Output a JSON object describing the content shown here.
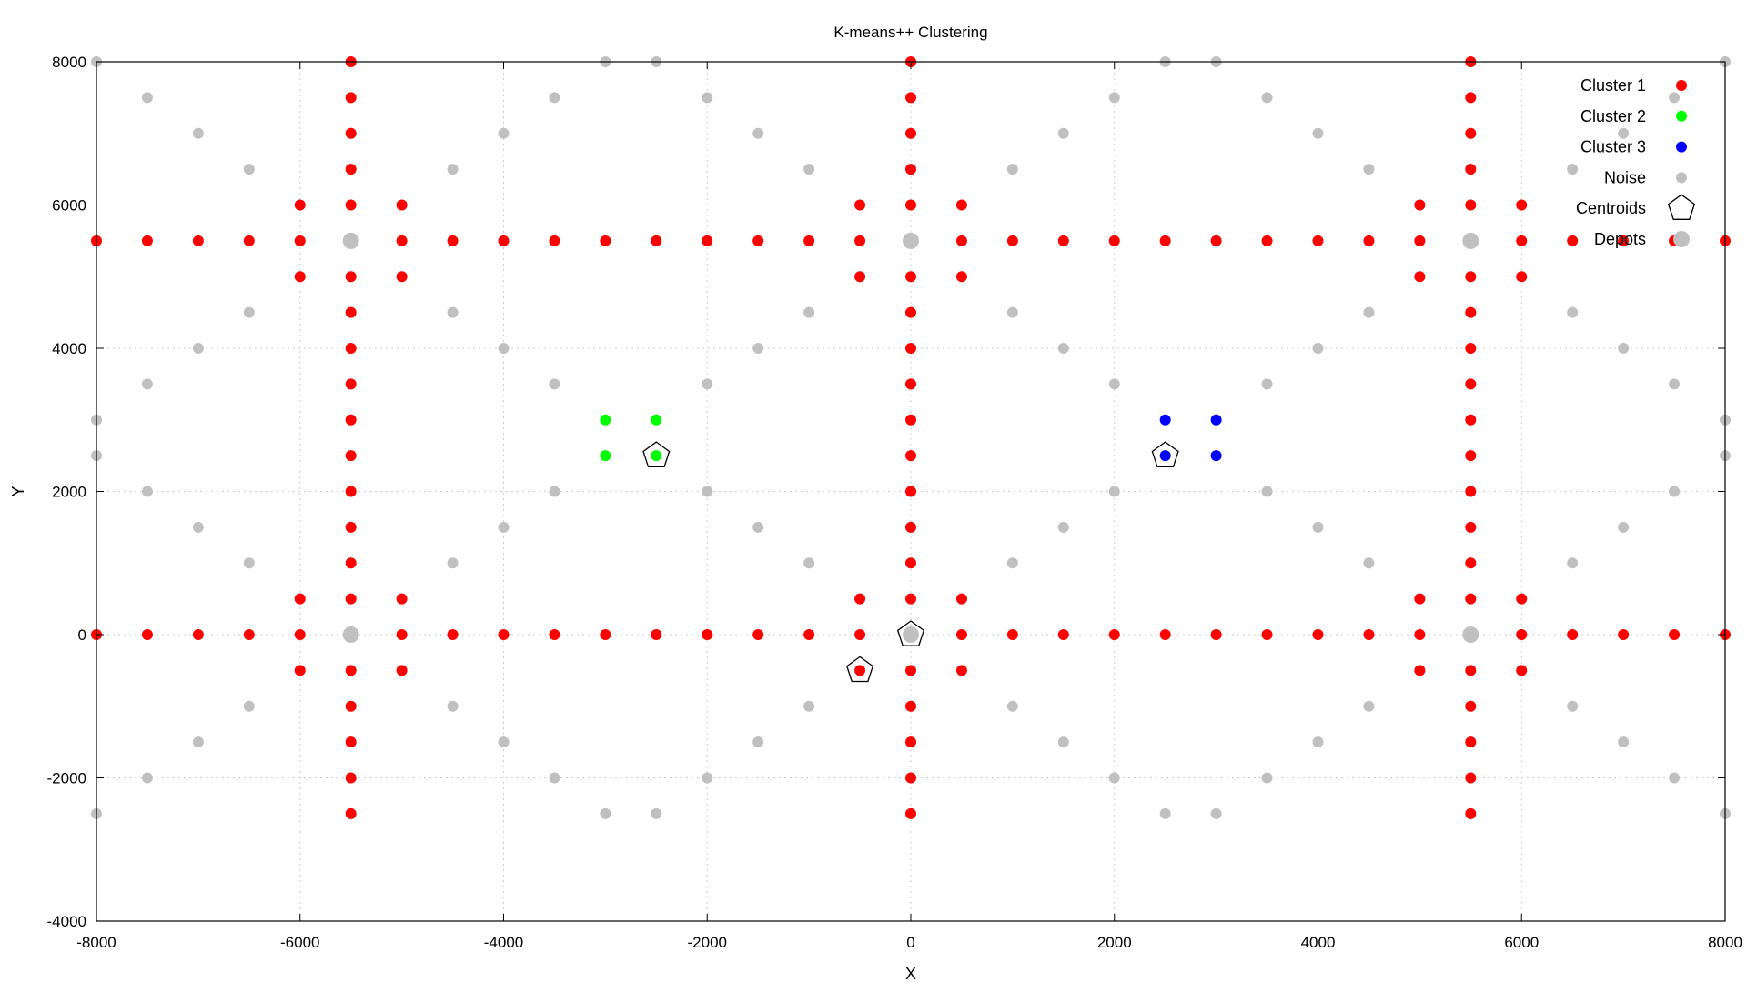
{
  "chart_data": {
    "type": "scatter",
    "title": "K-means++ Clustering",
    "xlabel": "X",
    "ylabel": "Y",
    "xlim": [
      -8000,
      8000
    ],
    "ylim": [
      -4000,
      8000
    ],
    "xticks": [
      -8000,
      -6000,
      -4000,
      -2000,
      0,
      2000,
      4000,
      6000,
      8000
    ],
    "yticks": [
      -4000,
      -2000,
      0,
      2000,
      4000,
      6000,
      8000
    ],
    "grid": true,
    "legend_position": "top-right",
    "series": [
      {
        "name": "Cluster 1",
        "color": "#ff0000",
        "marker": "circle",
        "points": [
          [
            -5500,
            8000
          ],
          [
            -5500,
            7500
          ],
          [
            -5500,
            7000
          ],
          [
            -5500,
            6500
          ],
          [
            -5500,
            6000
          ],
          [
            -5500,
            5000
          ],
          [
            -5500,
            4500
          ],
          [
            -5500,
            4000
          ],
          [
            -5500,
            3500
          ],
          [
            -5500,
            3000
          ],
          [
            -5500,
            2500
          ],
          [
            -5500,
            2000
          ],
          [
            -5500,
            1500
          ],
          [
            -5500,
            1000
          ],
          [
            -5500,
            500
          ],
          [
            -5500,
            -500
          ],
          [
            -5500,
            -1000
          ],
          [
            -5500,
            -1500
          ],
          [
            -5500,
            -2000
          ],
          [
            -5500,
            -2500
          ],
          [
            0,
            8000
          ],
          [
            0,
            7500
          ],
          [
            0,
            7000
          ],
          [
            0,
            6500
          ],
          [
            0,
            6000
          ],
          [
            0,
            5000
          ],
          [
            0,
            4500
          ],
          [
            0,
            4000
          ],
          [
            0,
            3500
          ],
          [
            0,
            3000
          ],
          [
            0,
            2500
          ],
          [
            0,
            2000
          ],
          [
            0,
            1500
          ],
          [
            0,
            1000
          ],
          [
            0,
            500
          ],
          [
            0,
            -500
          ],
          [
            0,
            -1000
          ],
          [
            0,
            -1500
          ],
          [
            0,
            -2000
          ],
          [
            0,
            -2500
          ],
          [
            5500,
            8000
          ],
          [
            5500,
            7500
          ],
          [
            5500,
            7000
          ],
          [
            5500,
            6500
          ],
          [
            5500,
            6000
          ],
          [
            5500,
            5000
          ],
          [
            5500,
            4500
          ],
          [
            5500,
            4000
          ],
          [
            5500,
            3500
          ],
          [
            5500,
            3000
          ],
          [
            5500,
            2500
          ],
          [
            5500,
            2000
          ],
          [
            5500,
            1500
          ],
          [
            5500,
            1000
          ],
          [
            5500,
            500
          ],
          [
            5500,
            -500
          ],
          [
            5500,
            -1000
          ],
          [
            5500,
            -1500
          ],
          [
            5500,
            -2000
          ],
          [
            5500,
            -2500
          ],
          [
            -8000,
            5500
          ],
          [
            -7500,
            5500
          ],
          [
            -7000,
            5500
          ],
          [
            -6500,
            5500
          ],
          [
            -6000,
            5500
          ],
          [
            -5000,
            5500
          ],
          [
            -4500,
            5500
          ],
          [
            -4000,
            5500
          ],
          [
            -3500,
            5500
          ],
          [
            -3000,
            5500
          ],
          [
            -2500,
            5500
          ],
          [
            -2000,
            5500
          ],
          [
            -1500,
            5500
          ],
          [
            -1000,
            5500
          ],
          [
            -500,
            5500
          ],
          [
            500,
            5500
          ],
          [
            1000,
            5500
          ],
          [
            1500,
            5500
          ],
          [
            2000,
            5500
          ],
          [
            2500,
            5500
          ],
          [
            3000,
            5500
          ],
          [
            3500,
            5500
          ],
          [
            4000,
            5500
          ],
          [
            4500,
            5500
          ],
          [
            5000,
            5500
          ],
          [
            6000,
            5500
          ],
          [
            6500,
            5500
          ],
          [
            7000,
            5500
          ],
          [
            7500,
            5500
          ],
          [
            8000,
            5500
          ],
          [
            -8000,
            0
          ],
          [
            -7500,
            0
          ],
          [
            -7000,
            0
          ],
          [
            -6500,
            0
          ],
          [
            -6000,
            0
          ],
          [
            -5000,
            0
          ],
          [
            -4500,
            0
          ],
          [
            -4000,
            0
          ],
          [
            -3500,
            0
          ],
          [
            -3000,
            0
          ],
          [
            -2500,
            0
          ],
          [
            -2000,
            0
          ],
          [
            -1500,
            0
          ],
          [
            -1000,
            0
          ],
          [
            -500,
            0
          ],
          [
            500,
            0
          ],
          [
            1000,
            0
          ],
          [
            1500,
            0
          ],
          [
            2000,
            0
          ],
          [
            2500,
            0
          ],
          [
            3000,
            0
          ],
          [
            3500,
            0
          ],
          [
            4000,
            0
          ],
          [
            4500,
            0
          ],
          [
            5000,
            0
          ],
          [
            6000,
            0
          ],
          [
            6500,
            0
          ],
          [
            7000,
            0
          ],
          [
            7500,
            0
          ],
          [
            8000,
            0
          ],
          [
            -6000,
            6000
          ],
          [
            -5000,
            6000
          ],
          [
            -6000,
            5000
          ],
          [
            -5000,
            5000
          ],
          [
            -500,
            6000
          ],
          [
            500,
            6000
          ],
          [
            -500,
            5000
          ],
          [
            500,
            5000
          ],
          [
            5000,
            6000
          ],
          [
            6000,
            6000
          ],
          [
            5000,
            5000
          ],
          [
            6000,
            5000
          ],
          [
            -6000,
            500
          ],
          [
            -5000,
            500
          ],
          [
            -6000,
            -500
          ],
          [
            -5000,
            -500
          ],
          [
            -500,
            500
          ],
          [
            500,
            500
          ],
          [
            -500,
            -500
          ],
          [
            500,
            -500
          ],
          [
            5000,
            500
          ],
          [
            6000,
            500
          ],
          [
            5000,
            -500
          ],
          [
            6000,
            -500
          ]
        ]
      },
      {
        "name": "Cluster 2",
        "color": "#00ff00",
        "marker": "circle",
        "points": [
          [
            -3000,
            3000
          ],
          [
            -2500,
            3000
          ],
          [
            -3000,
            2500
          ],
          [
            -2500,
            2500
          ]
        ]
      },
      {
        "name": "Cluster 3",
        "color": "#0000ff",
        "marker": "circle",
        "points": [
          [
            2500,
            3000
          ],
          [
            3000,
            3000
          ],
          [
            2500,
            2500
          ],
          [
            3000,
            2500
          ]
        ]
      },
      {
        "name": "Noise",
        "color": "#c0c0c0",
        "marker": "circle",
        "points": [
          [
            -8000,
            8000
          ],
          [
            -3000,
            8000
          ],
          [
            -2500,
            8000
          ],
          [
            2500,
            8000
          ],
          [
            3000,
            8000
          ],
          [
            8000,
            8000
          ],
          [
            -7500,
            7500
          ],
          [
            -3500,
            7500
          ],
          [
            -2000,
            7500
          ],
          [
            2000,
            7500
          ],
          [
            3500,
            7500
          ],
          [
            7500,
            7500
          ],
          [
            -7000,
            7000
          ],
          [
            -4000,
            7000
          ],
          [
            -1500,
            7000
          ],
          [
            1500,
            7000
          ],
          [
            4000,
            7000
          ],
          [
            7000,
            7000
          ],
          [
            -6500,
            6500
          ],
          [
            -4500,
            6500
          ],
          [
            -1000,
            6500
          ],
          [
            1000,
            6500
          ],
          [
            4500,
            6500
          ],
          [
            6500,
            6500
          ],
          [
            -6500,
            4500
          ],
          [
            -4500,
            4500
          ],
          [
            -1000,
            4500
          ],
          [
            1000,
            4500
          ],
          [
            4500,
            4500
          ],
          [
            6500,
            4500
          ],
          [
            -7000,
            4000
          ],
          [
            -4000,
            4000
          ],
          [
            -1500,
            4000
          ],
          [
            1500,
            4000
          ],
          [
            4000,
            4000
          ],
          [
            7000,
            4000
          ],
          [
            -7500,
            3500
          ],
          [
            -3500,
            3500
          ],
          [
            -2000,
            3500
          ],
          [
            2000,
            3500
          ],
          [
            3500,
            3500
          ],
          [
            7500,
            3500
          ],
          [
            -8000,
            3000
          ],
          [
            8000,
            3000
          ],
          [
            -8000,
            2500
          ],
          [
            8000,
            2500
          ],
          [
            -7500,
            2000
          ],
          [
            -3500,
            2000
          ],
          [
            -2000,
            2000
          ],
          [
            2000,
            2000
          ],
          [
            3500,
            2000
          ],
          [
            7500,
            2000
          ],
          [
            -7000,
            1500
          ],
          [
            -4000,
            1500
          ],
          [
            -1500,
            1500
          ],
          [
            1500,
            1500
          ],
          [
            4000,
            1500
          ],
          [
            7000,
            1500
          ],
          [
            -6500,
            1000
          ],
          [
            -4500,
            1000
          ],
          [
            -1000,
            1000
          ],
          [
            1000,
            1000
          ],
          [
            4500,
            1000
          ],
          [
            6500,
            1000
          ],
          [
            -6500,
            -1000
          ],
          [
            -4500,
            -1000
          ],
          [
            -1000,
            -1000
          ],
          [
            1000,
            -1000
          ],
          [
            4500,
            -1000
          ],
          [
            6500,
            -1000
          ],
          [
            -7000,
            -1500
          ],
          [
            -4000,
            -1500
          ],
          [
            -1500,
            -1500
          ],
          [
            1500,
            -1500
          ],
          [
            4000,
            -1500
          ],
          [
            7000,
            -1500
          ],
          [
            -7500,
            -2000
          ],
          [
            -3500,
            -2000
          ],
          [
            -2000,
            -2000
          ],
          [
            2000,
            -2000
          ],
          [
            3500,
            -2000
          ],
          [
            7500,
            -2000
          ],
          [
            -8000,
            -2500
          ],
          [
            -3000,
            -2500
          ],
          [
            -2500,
            -2500
          ],
          [
            2500,
            -2500
          ],
          [
            3000,
            -2500
          ],
          [
            8000,
            -2500
          ]
        ]
      },
      {
        "name": "Centroids",
        "color": "#000000",
        "marker": "pentagon",
        "points": [
          [
            -2500,
            2500
          ],
          [
            2500,
            2500
          ],
          [
            0,
            0
          ],
          [
            -500,
            -500
          ]
        ]
      },
      {
        "name": "Depots",
        "color": "#c0c0c0",
        "marker": "circle-large",
        "points": [
          [
            -5500,
            5500
          ],
          [
            0,
            5500
          ],
          [
            5500,
            5500
          ],
          [
            -5500,
            0
          ],
          [
            0,
            0
          ],
          [
            5500,
            0
          ]
        ]
      }
    ]
  }
}
